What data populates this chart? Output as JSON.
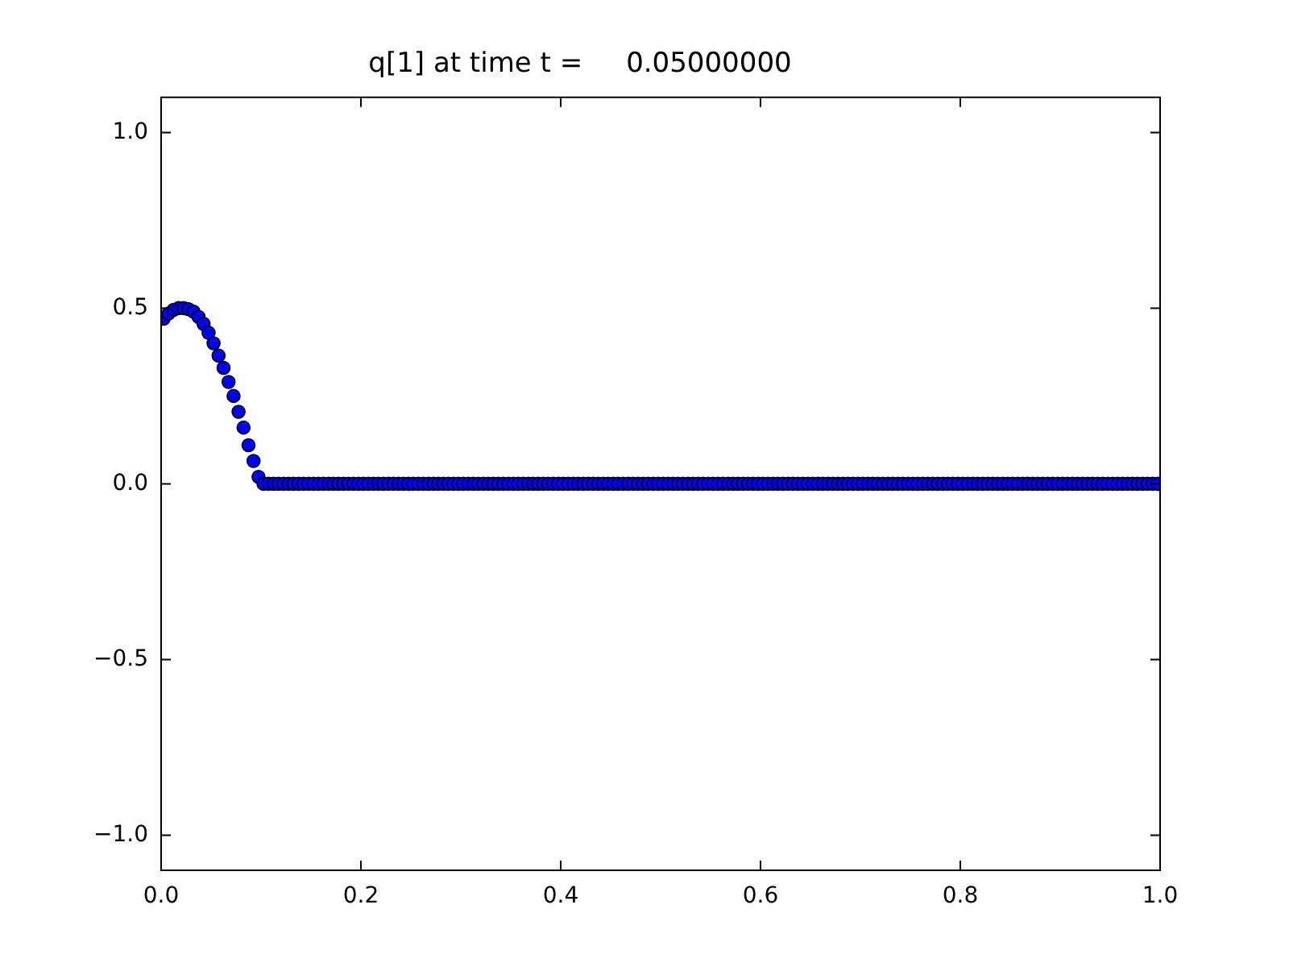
{
  "chart_data": {
    "type": "scatter",
    "title": "q[1] at time t =     0.05000000",
    "marker": "circle",
    "grid": false,
    "xlim": [
      0,
      1
    ],
    "xticks": [
      {
        "value": 0,
        "label": "0.0"
      },
      {
        "value": 0.2,
        "label": "0.2"
      },
      {
        "value": 0.4,
        "label": "0.4"
      },
      {
        "value": 0.6,
        "label": "0.6"
      },
      {
        "value": 0.8,
        "label": "0.8"
      },
      {
        "value": 1,
        "label": "1.0"
      }
    ],
    "ylim": [
      -1.1,
      1.1
    ],
    "yticks": [
      {
        "value": -1,
        "label": "−1.0"
      },
      {
        "value": -0.5,
        "label": "−0.5"
      },
      {
        "value": 0,
        "label": "0.0"
      },
      {
        "value": 0.5,
        "label": "0.5"
      },
      {
        "value": 1,
        "label": "1.0"
      }
    ],
    "series": [
      {
        "color": "#0000ff",
        "x": [
          0.0025,
          0.0075,
          0.0125,
          0.0175,
          0.0225,
          0.0275,
          0.0325,
          0.0375,
          0.0425,
          0.0475,
          0.0525,
          0.0575,
          0.0625,
          0.0675,
          0.0725,
          0.0775,
          0.0825,
          0.0875,
          0.0925,
          0.0975,
          0.1025,
          0.1075,
          0.1125,
          0.1175,
          0.1225,
          0.1275,
          0.1325,
          0.1375,
          0.1425,
          0.1475,
          0.1525,
          0.1575,
          0.1625,
          0.1675,
          0.1725,
          0.1775,
          0.1825,
          0.1875,
          0.1925,
          0.1975,
          0.2025,
          0.2075,
          0.2125,
          0.2175,
          0.2225,
          0.2275,
          0.2325,
          0.2375,
          0.2425,
          0.2475,
          0.2525,
          0.2575,
          0.2625,
          0.2675,
          0.2725,
          0.2775,
          0.2825,
          0.2875,
          0.2925,
          0.2975,
          0.3025,
          0.3075,
          0.3125,
          0.3175,
          0.3225,
          0.3275,
          0.3325,
          0.3375,
          0.3425,
          0.3475,
          0.3525,
          0.3575,
          0.3625,
          0.3675,
          0.3725,
          0.3775,
          0.3825,
          0.3875,
          0.3925,
          0.3975,
          0.4025,
          0.4075,
          0.4125,
          0.4175,
          0.4225,
          0.4275,
          0.4325,
          0.4375,
          0.4425,
          0.4475,
          0.4525,
          0.4575,
          0.4625,
          0.4675,
          0.4725,
          0.4775,
          0.4825,
          0.4875,
          0.4925,
          0.4975,
          0.5025,
          0.5075,
          0.5125,
          0.5175,
          0.5225,
          0.5275,
          0.5325,
          0.5375,
          0.5425,
          0.5475,
          0.5525,
          0.5575,
          0.5625,
          0.5675,
          0.5725,
          0.5775,
          0.5825,
          0.5875,
          0.5925,
          0.5975,
          0.6025,
          0.6075,
          0.6125,
          0.6175,
          0.6225,
          0.6275,
          0.6325,
          0.6375,
          0.6425,
          0.6475,
          0.6525,
          0.6575,
          0.6625,
          0.6675,
          0.6725,
          0.6775,
          0.6825,
          0.6875,
          0.6925,
          0.6975,
          0.7025,
          0.7075,
          0.7125,
          0.7175,
          0.7225,
          0.7275,
          0.7325,
          0.7375,
          0.7425,
          0.7475,
          0.7525,
          0.7575,
          0.7625,
          0.7675,
          0.7725,
          0.7775,
          0.7825,
          0.7875,
          0.7925,
          0.7975,
          0.8025,
          0.8075,
          0.8125,
          0.8175,
          0.8225,
          0.8275,
          0.8325,
          0.8375,
          0.8425,
          0.8475,
          0.8525,
          0.8575,
          0.8625,
          0.8675,
          0.8725,
          0.8775,
          0.8825,
          0.8875,
          0.8925,
          0.8975,
          0.9025,
          0.9075,
          0.9125,
          0.9175,
          0.9225,
          0.9275,
          0.9325,
          0.9375,
          0.9425,
          0.9475,
          0.9525,
          0.9575,
          0.9625,
          0.9675,
          0.9725,
          0.9775,
          0.9825,
          0.9875,
          0.9925,
          0.9975
        ],
        "values": [
          0.47,
          0.485,
          0.495,
          0.5,
          0.5,
          0.497,
          0.49,
          0.475,
          0.455,
          0.43,
          0.4,
          0.365,
          0.33,
          0.29,
          0.25,
          0.205,
          0.16,
          0.11,
          0.065,
          0.02,
          0,
          0,
          0,
          0,
          0,
          0,
          0,
          0,
          0,
          0,
          0,
          0,
          0,
          0,
          0,
          0,
          0,
          0,
          0,
          0,
          0,
          0,
          0,
          0,
          0,
          0,
          0,
          0,
          0,
          0,
          0,
          0,
          0,
          0,
          0,
          0,
          0,
          0,
          0,
          0,
          0,
          0,
          0,
          0,
          0,
          0,
          0,
          0,
          0,
          0,
          0,
          0,
          0,
          0,
          0,
          0,
          0,
          0,
          0,
          0,
          0,
          0,
          0,
          0,
          0,
          0,
          0,
          0,
          0,
          0,
          0,
          0,
          0,
          0,
          0,
          0,
          0,
          0,
          0,
          0,
          0,
          0,
          0,
          0,
          0,
          0,
          0,
          0,
          0,
          0,
          0,
          0,
          0,
          0,
          0,
          0,
          0,
          0,
          0,
          0,
          0,
          0,
          0,
          0,
          0,
          0,
          0,
          0,
          0,
          0,
          0,
          0,
          0,
          0,
          0,
          0,
          0,
          0,
          0,
          0,
          0,
          0,
          0,
          0,
          0,
          0,
          0,
          0,
          0,
          0,
          0,
          0,
          0,
          0,
          0,
          0,
          0,
          0,
          0,
          0,
          0,
          0,
          0,
          0,
          0,
          0,
          0,
          0,
          0,
          0,
          0,
          0,
          0,
          0,
          0,
          0,
          0,
          0,
          0,
          0,
          0,
          0,
          0,
          0,
          0,
          0,
          0,
          0,
          0,
          0,
          0,
          0,
          0,
          0,
          0,
          0,
          0,
          0,
          0,
          0
        ]
      }
    ]
  }
}
